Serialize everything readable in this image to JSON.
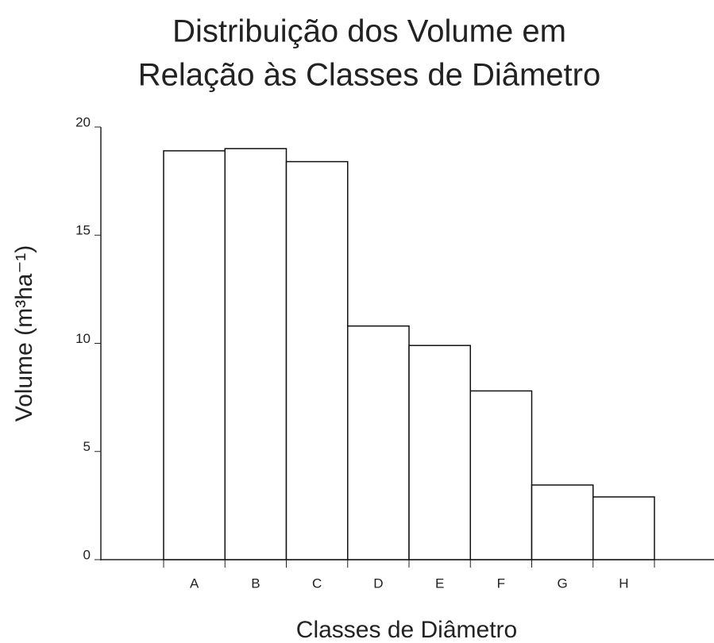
{
  "chart_data": {
    "type": "bar",
    "title": [
      "Distribuição dos Volume em",
      "Relação às Classes de Diâmetro"
    ],
    "x_label": "Classes de Diâmetro",
    "y_label": "Volume (m³ha⁻¹)",
    "categories": [
      "A",
      "B",
      "C",
      "D",
      "E",
      "F",
      "G",
      "H"
    ],
    "values": [
      18.9,
      19.0,
      18.4,
      10.8,
      9.9,
      7.8,
      3.45,
      2.9
    ],
    "color": "#ffffff",
    "ylim": [
      0,
      20
    ],
    "yticks": [
      0,
      5,
      10,
      15,
      20
    ],
    "grid": false
  }
}
